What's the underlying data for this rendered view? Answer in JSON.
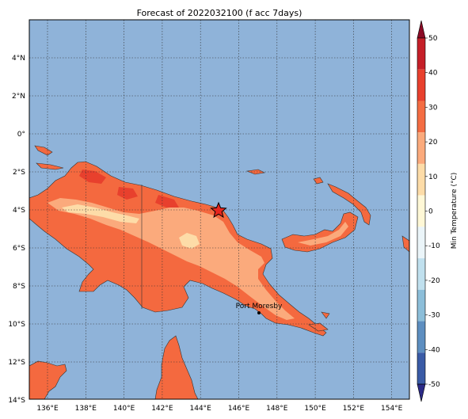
{
  "title": "Forecast of 2022032100 (f acc 7days)",
  "map": {
    "ocean_color": "#8fb3d9",
    "land_base_color": "#f4693f",
    "lat_labels": [
      "4°N",
      "2°N",
      "0°",
      "2°S",
      "4°S",
      "6°S",
      "8°S",
      "10°S",
      "12°S",
      "14°S"
    ],
    "lon_labels": [
      "136°E",
      "138°E",
      "140°E",
      "142°E",
      "144°E",
      "146°E",
      "148°E",
      "150°E",
      "152°E",
      "154°E"
    ],
    "city": {
      "name": "Port Moresby"
    },
    "marker": {
      "symbol": "star",
      "color": "#e8261e"
    }
  },
  "colorbar": {
    "label": "Min Temperature (°C)",
    "tick_labels": [
      "50",
      "40",
      "30",
      "20",
      "10",
      "0",
      "-10",
      "-20",
      "-30",
      "-40",
      "-50"
    ],
    "colors_top_to_bottom": [
      "#8b0a25",
      "#c51f28",
      "#e8402d",
      "#f46d43",
      "#fbaa7c",
      "#fddca8",
      "#fff8d6",
      "#ebf5f9",
      "#c0e0ee",
      "#8cbed9",
      "#5d8ec0",
      "#3a5ba6",
      "#2b2a87"
    ],
    "extend": "both"
  }
}
